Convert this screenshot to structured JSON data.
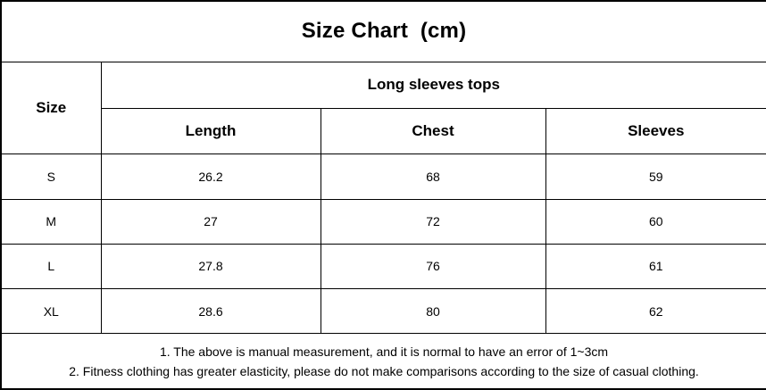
{
  "title": "Size Chart  (cm)",
  "chart_data": {
    "type": "table",
    "title": "Size Chart (cm)",
    "unit": "cm",
    "group_header": "Long sleeves tops",
    "columns": [
      "Size",
      "Length",
      "Chest",
      "Sleeves"
    ],
    "rows": [
      [
        "S",
        26.2,
        68,
        59
      ],
      [
        "M",
        27,
        72,
        60
      ],
      [
        "L",
        27.8,
        76,
        61
      ],
      [
        "XL",
        28.6,
        80,
        62
      ]
    ]
  },
  "notes": {
    "line1": "1. The above is manual measurement, and it is normal to have an error of 1~3cm",
    "line2": "2. Fitness clothing has greater elasticity, please do not make comparisons according to the size of casual clothing."
  },
  "colors": {
    "border": "#000000",
    "text": "#000000",
    "background": "#ffffff"
  }
}
